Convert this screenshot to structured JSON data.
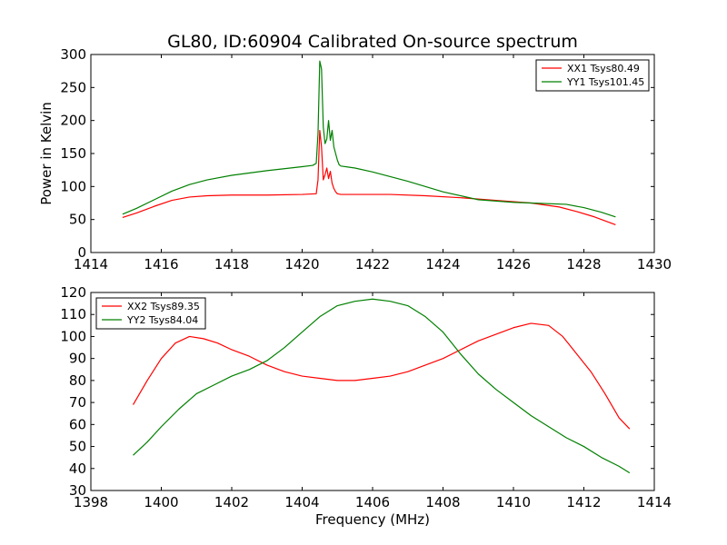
{
  "figure": {
    "title": "GL80, ID:60904 Calibrated On-source spectrum"
  },
  "chart_data": [
    {
      "type": "line",
      "title": "GL80, ID:60904 Calibrated On-source spectrum",
      "xlabel": "",
      "ylabel": "Power in Kelvin",
      "xlim": [
        1414,
        1430
      ],
      "ylim": [
        0,
        300
      ],
      "xticks": [
        1414,
        1416,
        1418,
        1420,
        1422,
        1424,
        1426,
        1428,
        1430
      ],
      "yticks": [
        0,
        50,
        100,
        150,
        200,
        250,
        300
      ],
      "grid": false,
      "legend_position": "top-right",
      "series": [
        {
          "name": "XX1 Tsys80.49",
          "color": "#ff0000",
          "x": [
            1414.9,
            1415.3,
            1415.8,
            1416.3,
            1416.8,
            1417.3,
            1418.0,
            1419.0,
            1420.0,
            1420.4,
            1420.45,
            1420.5,
            1420.55,
            1420.6,
            1420.65,
            1420.7,
            1420.75,
            1420.8,
            1420.85,
            1420.9,
            1420.95,
            1421.0,
            1421.1,
            1421.5,
            1422.5,
            1423.5,
            1424.5,
            1425.5,
            1426.5,
            1427.3,
            1427.8,
            1428.3,
            1428.9
          ],
          "y": [
            53,
            60,
            70,
            79,
            84,
            86,
            87,
            87,
            88,
            89,
            110,
            185,
            160,
            110,
            118,
            128,
            112,
            123,
            105,
            97,
            92,
            89,
            88,
            88,
            88,
            86,
            83,
            79,
            75,
            69,
            62,
            54,
            42
          ]
        },
        {
          "name": "YY1 Tsys101.45",
          "color": "#008000",
          "x": [
            1414.9,
            1415.3,
            1415.8,
            1416.3,
            1416.8,
            1417.3,
            1418.0,
            1419.0,
            1420.0,
            1420.3,
            1420.4,
            1420.45,
            1420.5,
            1420.55,
            1420.6,
            1420.65,
            1420.7,
            1420.75,
            1420.8,
            1420.85,
            1420.9,
            1420.95,
            1421.0,
            1421.05,
            1421.1,
            1421.5,
            1422.0,
            1423.0,
            1424.0,
            1425.0,
            1426.0,
            1426.5,
            1427.5,
            1428.0,
            1428.5,
            1428.9
          ],
          "y": [
            58,
            67,
            80,
            93,
            103,
            110,
            117,
            124,
            130,
            132,
            135,
            180,
            290,
            278,
            190,
            165,
            172,
            200,
            170,
            185,
            160,
            150,
            140,
            133,
            131,
            128,
            122,
            108,
            92,
            80,
            76,
            75,
            73,
            68,
            61,
            54
          ]
        }
      ]
    },
    {
      "type": "line",
      "title": "",
      "xlabel": "Frequency (MHz)",
      "ylabel": "",
      "xlim": [
        1398,
        1414
      ],
      "ylim": [
        30,
        120
      ],
      "xticks": [
        1398,
        1400,
        1402,
        1404,
        1406,
        1408,
        1410,
        1412,
        1414
      ],
      "yticks": [
        30,
        40,
        50,
        60,
        70,
        80,
        90,
        100,
        110,
        120
      ],
      "grid": false,
      "legend_position": "top-left",
      "series": [
        {
          "name": "XX2 Tsys89.35",
          "color": "#ff0000",
          "x": [
            1399.2,
            1399.6,
            1400.0,
            1400.4,
            1400.8,
            1401.2,
            1401.6,
            1402.0,
            1402.5,
            1403.0,
            1403.5,
            1404.0,
            1404.5,
            1405.0,
            1405.5,
            1406.0,
            1406.5,
            1407.0,
            1407.5,
            1408.0,
            1408.5,
            1409.0,
            1409.5,
            1410.0,
            1410.5,
            1411.0,
            1411.4,
            1411.8,
            1412.2,
            1412.6,
            1413.0,
            1413.3
          ],
          "y": [
            69,
            80,
            90,
            97,
            100,
            99,
            97,
            94,
            91,
            87,
            84,
            82,
            81,
            80,
            80,
            81,
            82,
            84,
            87,
            90,
            94,
            98,
            101,
            104,
            106,
            105,
            100,
            92,
            84,
            74,
            63,
            58
          ]
        },
        {
          "name": "YY2 Tsys84.04",
          "color": "#008000",
          "x": [
            1399.2,
            1399.6,
            1400.0,
            1400.5,
            1401.0,
            1401.5,
            1402.0,
            1402.5,
            1403.0,
            1403.5,
            1404.0,
            1404.5,
            1405.0,
            1405.5,
            1406.0,
            1406.5,
            1407.0,
            1407.5,
            1408.0,
            1408.5,
            1409.0,
            1409.5,
            1410.0,
            1410.5,
            1411.0,
            1411.5,
            1412.0,
            1412.5,
            1413.0,
            1413.3
          ],
          "y": [
            46,
            52,
            59,
            67,
            74,
            78,
            82,
            85,
            89,
            95,
            102,
            109,
            114,
            116,
            117,
            116,
            114,
            109,
            102,
            92,
            83,
            76,
            70,
            64,
            59,
            54,
            50,
            45,
            41,
            38
          ]
        }
      ]
    }
  ]
}
